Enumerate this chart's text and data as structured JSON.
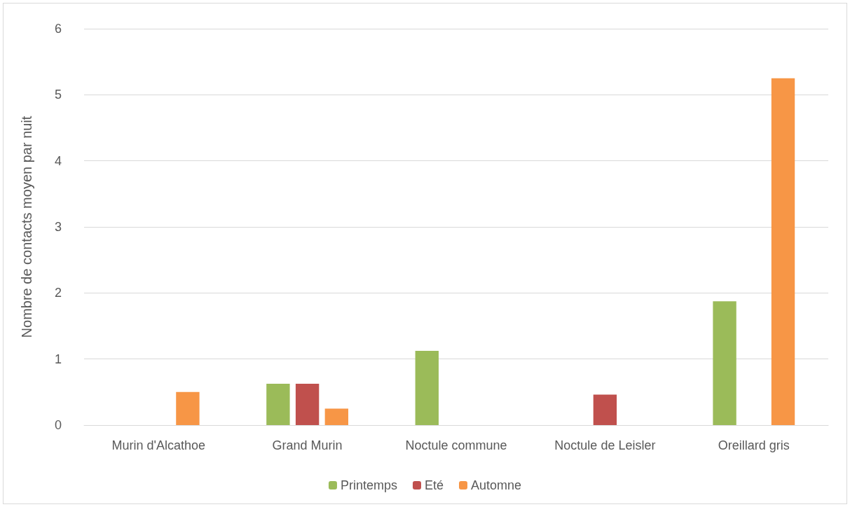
{
  "chart_data": {
    "type": "bar",
    "ylabel": "Nombre de contacts moyen par nuit",
    "categories": [
      "Murin d'Alcathoe",
      "Grand Murin",
      "Noctule commune",
      "Noctule de Leisler",
      "Oreillard gris"
    ],
    "series": [
      {
        "name": "Printemps",
        "color": "#9bbb59",
        "values": [
          null,
          0.625,
          1.125,
          null,
          1.875
        ]
      },
      {
        "name": "Eté",
        "color": "#c0504d",
        "values": [
          null,
          0.625,
          null,
          0.46,
          null
        ]
      },
      {
        "name": "Automne",
        "color": "#f79646",
        "values": [
          0.5,
          0.25,
          null,
          null,
          5.25
        ]
      }
    ],
    "ylim": [
      0,
      6
    ],
    "yticks": [
      0,
      1,
      2,
      3,
      4,
      5,
      6
    ],
    "grid": "y",
    "legend": "bottom"
  }
}
